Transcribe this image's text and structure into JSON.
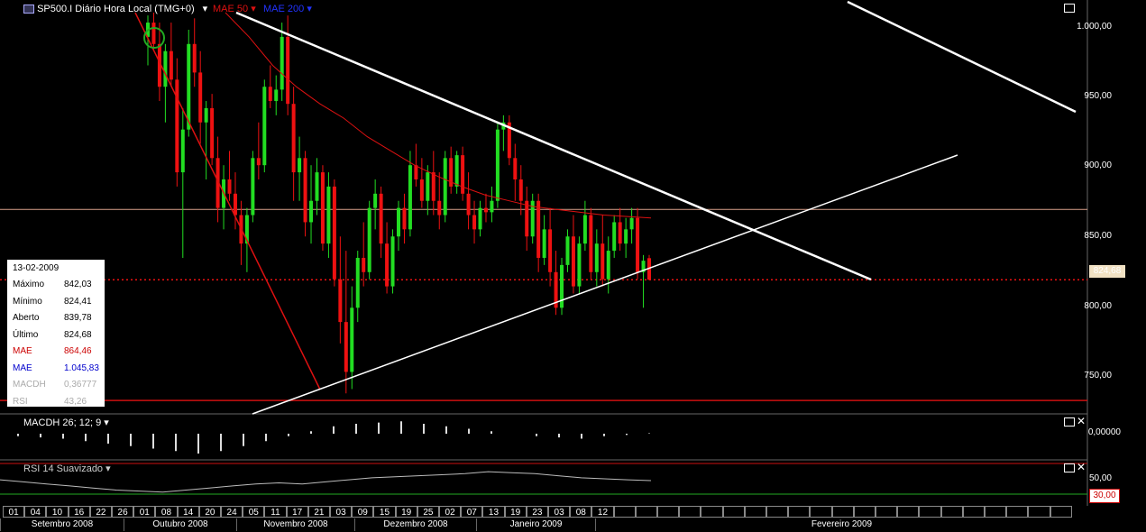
{
  "header": {
    "symbol_text": "SP500.I Diário Hora Local (TMG+0)",
    "mae50_label": "MAE 50",
    "mae200_label": "MAE 200"
  },
  "info_box": {
    "date": "13-02-2009",
    "rows": [
      {
        "label": "Máximo",
        "value": "842,03",
        "color": "#000000"
      },
      {
        "label": "Mínimo",
        "value": "824,41",
        "color": "#000000"
      },
      {
        "label": "Aberto",
        "value": "839,78",
        "color": "#000000"
      },
      {
        "label": "Último",
        "value": "824,68",
        "color": "#000000"
      },
      {
        "label": "MAE",
        "value": "864,46",
        "color": "#cc0000"
      },
      {
        "label": "MAE",
        "value": "1.045,83",
        "color": "#0000cc"
      },
      {
        "label": "MACDH",
        "value": "0,36777",
        "color": "#aaaaaa"
      },
      {
        "label": "RSI",
        "value": "43,26",
        "color": "#aaaaaa"
      }
    ]
  },
  "price_axis": [
    "1.000,00",
    "950,00",
    "900,00",
    "850,00",
    "800,00",
    "750,00"
  ],
  "last_price_tag": "824,68",
  "macd_pane": {
    "label": "MACDH 26; 12; 9",
    "axis": "0,00000"
  },
  "rsi_pane": {
    "label": "RSI 14 Suavizado",
    "axis_high": "50,00",
    "axis_low": "30,00"
  },
  "dates": [
    "01",
    "04",
    "10",
    "16",
    "22",
    "26",
    "01",
    "08",
    "14",
    "20",
    "24",
    "05",
    "11",
    "17",
    "21",
    "03",
    "09",
    "15",
    "19",
    "25",
    "02",
    "07",
    "13",
    "19",
    "23",
    "03",
    "08",
    "12"
  ],
  "months": [
    "Setembro 2008",
    "Outubro 2008",
    "Novembro 2008",
    "Dezembro 2008",
    "Janeiro 2009",
    "Fevereiro 2009"
  ],
  "colors": {
    "up": "#22dd22",
    "down": "#ee1111",
    "mae50": "#dd1111",
    "bg": "#000000"
  },
  "chart_data": {
    "type": "candlestick",
    "ylim": [
      735,
      1012
    ],
    "support_line": 874,
    "low_line": 740,
    "last_price": 824.68,
    "candles": [
      [
        995,
        1010,
        975,
        1005
      ],
      [
        1005,
        1012,
        985,
        990
      ],
      [
        990,
        1005,
        950,
        960
      ],
      [
        960,
        990,
        935,
        985
      ],
      [
        985,
        1005,
        960,
        965
      ],
      [
        965,
        980,
        890,
        900
      ],
      [
        900,
        945,
        840,
        930
      ],
      [
        930,
        1000,
        925,
        990
      ],
      [
        990,
        1008,
        960,
        970
      ],
      [
        970,
        985,
        920,
        935
      ],
      [
        935,
        950,
        895,
        945
      ],
      [
        945,
        955,
        905,
        910
      ],
      [
        910,
        925,
        865,
        875
      ],
      [
        875,
        905,
        860,
        895
      ],
      [
        895,
        915,
        880,
        885
      ],
      [
        885,
        900,
        860,
        870
      ],
      [
        870,
        880,
        835,
        850
      ],
      [
        850,
        875,
        830,
        870
      ],
      [
        870,
        915,
        865,
        910
      ],
      [
        910,
        935,
        895,
        905
      ],
      [
        905,
        965,
        900,
        960
      ],
      [
        960,
        975,
        945,
        950
      ],
      [
        950,
        968,
        940,
        958
      ],
      [
        958,
        1005,
        950,
        995
      ],
      [
        995,
        1010,
        940,
        948
      ],
      [
        948,
        960,
        880,
        900
      ],
      [
        900,
        925,
        880,
        910
      ],
      [
        910,
        915,
        855,
        865
      ],
      [
        865,
        905,
        850,
        880
      ],
      [
        880,
        910,
        870,
        900
      ],
      [
        900,
        905,
        845,
        850
      ],
      [
        850,
        900,
        840,
        890
      ],
      [
        890,
        895,
        820,
        825
      ],
      [
        825,
        855,
        780,
        795
      ],
      [
        795,
        845,
        745,
        760
      ],
      [
        760,
        820,
        748,
        805
      ],
      [
        805,
        845,
        795,
        840
      ],
      [
        840,
        865,
        820,
        830
      ],
      [
        830,
        880,
        825,
        875
      ],
      [
        875,
        895,
        860,
        885
      ],
      [
        885,
        890,
        840,
        850
      ],
      [
        850,
        865,
        815,
        820
      ],
      [
        820,
        860,
        815,
        855
      ],
      [
        855,
        880,
        845,
        875
      ],
      [
        875,
        885,
        850,
        860
      ],
      [
        860,
        915,
        855,
        905
      ],
      [
        905,
        920,
        890,
        895
      ],
      [
        895,
        910,
        875,
        880
      ],
      [
        880,
        905,
        870,
        900
      ],
      [
        900,
        915,
        870,
        880
      ],
      [
        880,
        900,
        860,
        870
      ],
      [
        870,
        915,
        865,
        910
      ],
      [
        910,
        918,
        885,
        890
      ],
      [
        890,
        915,
        885,
        912
      ],
      [
        912,
        918,
        880,
        885
      ],
      [
        885,
        900,
        860,
        870
      ],
      [
        870,
        880,
        850,
        860
      ],
      [
        860,
        880,
        855,
        875
      ],
      [
        875,
        885,
        865,
        872
      ],
      [
        872,
        890,
        865,
        880
      ],
      [
        880,
        935,
        875,
        930
      ],
      [
        930,
        940,
        915,
        935
      ],
      [
        935,
        940,
        905,
        910
      ],
      [
        910,
        920,
        880,
        895
      ],
      [
        895,
        905,
        870,
        880
      ],
      [
        880,
        890,
        845,
        855
      ],
      [
        855,
        885,
        850,
        880
      ],
      [
        880,
        885,
        830,
        840
      ],
      [
        840,
        870,
        835,
        860
      ],
      [
        860,
        875,
        820,
        830
      ],
      [
        830,
        845,
        800,
        805
      ],
      [
        805,
        840,
        800,
        835
      ],
      [
        835,
        860,
        830,
        855
      ],
      [
        855,
        870,
        815,
        820
      ],
      [
        820,
        855,
        815,
        850
      ],
      [
        850,
        880,
        845,
        870
      ],
      [
        870,
        875,
        825,
        830
      ],
      [
        830,
        860,
        820,
        850
      ],
      [
        850,
        870,
        820,
        825
      ],
      [
        825,
        855,
        815,
        845
      ],
      [
        845,
        870,
        840,
        865
      ],
      [
        865,
        875,
        845,
        850
      ],
      [
        850,
        868,
        840,
        860
      ],
      [
        860,
        875,
        850,
        868
      ],
      [
        868,
        875,
        825,
        830
      ],
      [
        830,
        842,
        805,
        838
      ],
      [
        839.78,
        842.03,
        824.41,
        824.68
      ]
    ],
    "mae50": [
      1012,
      995,
      975,
      960,
      948,
      938,
      925,
      915,
      905,
      897,
      890,
      884,
      880,
      876,
      874,
      872,
      870,
      869,
      868
    ],
    "rsi": [
      44,
      42,
      40,
      38,
      36,
      34,
      33,
      32,
      34,
      36,
      38,
      40,
      41,
      40,
      42,
      44,
      46,
      47,
      48,
      49,
      50,
      52,
      51,
      50,
      48,
      46,
      45,
      44,
      43.26
    ],
    "macdh": [
      -2,
      -3,
      -4,
      -6,
      -8,
      -10,
      -12,
      -14,
      -16,
      -14,
      -10,
      -6,
      -2,
      2,
      6,
      8,
      9,
      10,
      8,
      6,
      4,
      2,
      0,
      -2,
      -3,
      -4,
      -2,
      -1,
      0.37
    ]
  }
}
